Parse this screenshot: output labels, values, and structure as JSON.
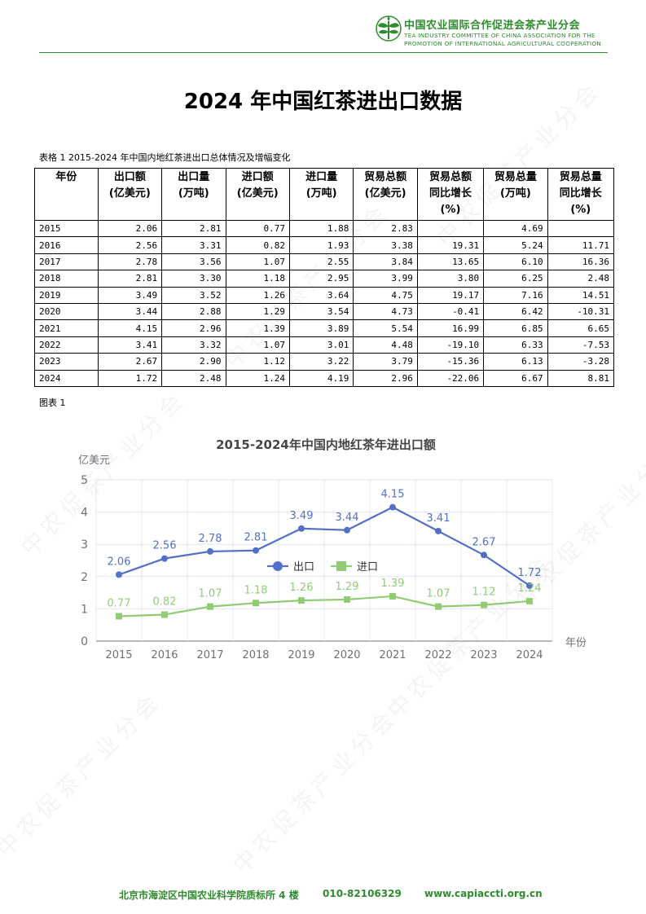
{
  "header": {
    "org_cn": "中国农业国际合作促进会茶产业分会",
    "org_en_line1": "TEA INDUSTRY COMMITTEE OF CHINA ASSOCIATION FOR THE",
    "org_en_line2": "PROMOTION OF INTERNATIONAL AGRICULTURAL COOPERATION"
  },
  "title": "2024 年中国红茶进出口数据",
  "table_caption": "表格 1 2015-2024 年中国内地红茶进出口总体情况及增幅变化",
  "table": {
    "headers": [
      [
        "年份"
      ],
      [
        "出口额",
        "(亿美元)"
      ],
      [
        "出口量",
        "(万吨)"
      ],
      [
        "进口额",
        "(亿美元)"
      ],
      [
        "进口量",
        "(万吨)"
      ],
      [
        "贸易总额",
        "(亿美元)"
      ],
      [
        "贸易总额",
        "同比增长",
        "(%)"
      ],
      [
        "贸易总量",
        "(万吨)"
      ],
      [
        "贸易总量",
        "同比增长",
        "(%)"
      ]
    ],
    "rows": [
      [
        "2015",
        "2.06",
        "2.81",
        "0.77",
        "1.88",
        "2.83",
        "",
        "4.69",
        ""
      ],
      [
        "2016",
        "2.56",
        "3.31",
        "0.82",
        "1.93",
        "3.38",
        "19.31",
        "5.24",
        "11.71"
      ],
      [
        "2017",
        "2.78",
        "3.56",
        "1.07",
        "2.55",
        "3.84",
        "13.65",
        "6.10",
        "16.36"
      ],
      [
        "2018",
        "2.81",
        "3.30",
        "1.18",
        "2.95",
        "3.99",
        "3.80",
        "6.25",
        "2.48"
      ],
      [
        "2019",
        "3.49",
        "3.52",
        "1.26",
        "3.64",
        "4.75",
        "19.17",
        "7.16",
        "14.51"
      ],
      [
        "2020",
        "3.44",
        "2.88",
        "1.29",
        "3.54",
        "4.73",
        "-0.41",
        "6.42",
        "-10.31"
      ],
      [
        "2021",
        "4.15",
        "2.96",
        "1.39",
        "3.89",
        "5.54",
        "16.99",
        "6.85",
        "6.65"
      ],
      [
        "2022",
        "3.41",
        "3.32",
        "1.07",
        "3.01",
        "4.48",
        "-19.10",
        "6.33",
        "-7.53"
      ],
      [
        "2023",
        "2.67",
        "2.90",
        "1.12",
        "3.22",
        "3.79",
        "-15.36",
        "6.13",
        "-3.28"
      ],
      [
        "2024",
        "1.72",
        "2.48",
        "1.24",
        "4.19",
        "2.96",
        "-22.06",
        "6.67",
        "8.81"
      ]
    ]
  },
  "figure_label": "图表 1",
  "chart_data": {
    "type": "line",
    "title": "2015-2024年中国内地红茶年进出口额",
    "ylabel": "亿美元",
    "xlabel": "年份",
    "categories": [
      "2015",
      "2016",
      "2017",
      "2018",
      "2019",
      "2020",
      "2021",
      "2022",
      "2023",
      "2024"
    ],
    "ylim": [
      0,
      5
    ],
    "yticks": [
      0,
      1,
      2,
      3,
      4,
      5
    ],
    "grid": true,
    "legend_position": "center",
    "series": [
      {
        "name": "出口",
        "color": "#5470c6",
        "marker": "circle",
        "values": [
          2.06,
          2.56,
          2.78,
          2.81,
          3.49,
          3.44,
          4.15,
          3.41,
          2.67,
          1.72
        ]
      },
      {
        "name": "进口",
        "color": "#91cc75",
        "marker": "square",
        "values": [
          0.77,
          0.82,
          1.07,
          1.18,
          1.26,
          1.29,
          1.39,
          1.07,
          1.12,
          1.24
        ]
      }
    ]
  },
  "footer": {
    "address": "北京市海淀区中国农业科学院质标所 4 楼",
    "phone": "010-82106329",
    "website": "www.capiaccti.org.cn"
  },
  "watermark": "中农促茶产业分会",
  "colors": {
    "brand_green": "#2e8b2e"
  }
}
